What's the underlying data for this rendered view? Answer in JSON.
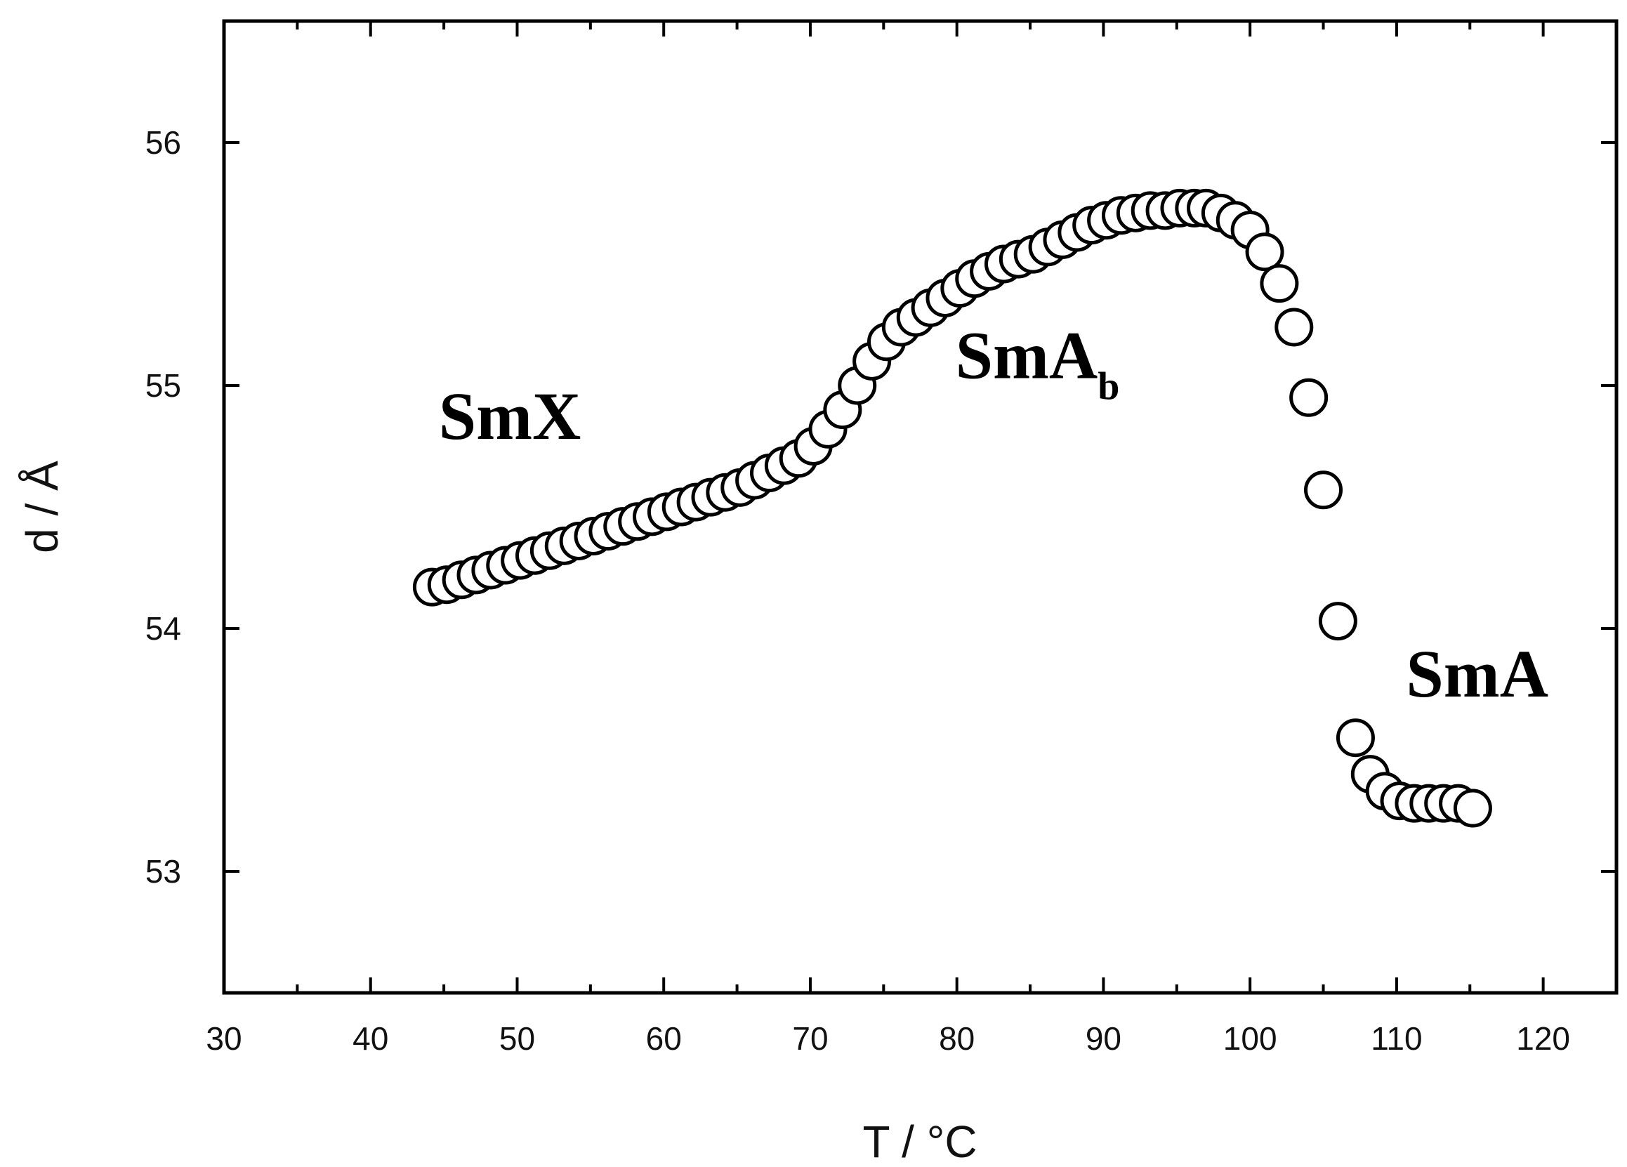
{
  "chart_data": {
    "type": "scatter",
    "xlabel": "T / °C",
    "ylabel": "d / Å",
    "xlim": [
      30,
      125
    ],
    "ylim": [
      52.5,
      56.5
    ],
    "xticks": [
      30,
      40,
      50,
      60,
      70,
      80,
      90,
      100,
      110,
      120
    ],
    "yticks": [
      53,
      54,
      55,
      56
    ],
    "grid": false,
    "marker": "open-circle",
    "series": [
      {
        "x": [
          44.2,
          45.2,
          46.2,
          47.2,
          48.2,
          49.2,
          50.2,
          51.2,
          52.2,
          53.2,
          54.2,
          55.2,
          56.2,
          57.2,
          58.2,
          59.2,
          60.2,
          61.2,
          62.2,
          63.2,
          64.2,
          65.2,
          66.2,
          67.2,
          68.2,
          69.2,
          70.2,
          71.2,
          72.2,
          73.2,
          74.2,
          75.2,
          76.2,
          77.2,
          78.2,
          79.2,
          80.2,
          81.2,
          82.2,
          83.2,
          84.2,
          85.2,
          86.2,
          87.2,
          88.2,
          89.2,
          90.2,
          91.2,
          92.2,
          93.2,
          94.2,
          95.2,
          96.2,
          97.0,
          98.0,
          99.0,
          100.0,
          101.0,
          102.0,
          103.0,
          104.0,
          105.0,
          106.0,
          107.2,
          108.2,
          109.2,
          110.2,
          111.2,
          112.2,
          113.2,
          114.2,
          115.2
        ],
        "y": [
          54.17,
          54.18,
          54.2,
          54.22,
          54.24,
          54.26,
          54.28,
          54.3,
          54.32,
          54.34,
          54.36,
          54.38,
          54.4,
          54.42,
          54.44,
          54.46,
          54.48,
          54.5,
          54.52,
          54.54,
          54.56,
          54.58,
          54.61,
          54.64,
          54.67,
          54.7,
          54.75,
          54.82,
          54.9,
          55.0,
          55.1,
          55.18,
          55.24,
          55.28,
          55.32,
          55.36,
          55.4,
          55.44,
          55.47,
          55.5,
          55.52,
          55.54,
          55.57,
          55.6,
          55.63,
          55.66,
          55.68,
          55.7,
          55.71,
          55.72,
          55.72,
          55.73,
          55.73,
          55.73,
          55.71,
          55.68,
          55.64,
          55.55,
          55.42,
          55.24,
          54.95,
          54.57,
          54.03,
          53.55,
          53.4,
          53.33,
          53.29,
          53.28,
          53.28,
          53.28,
          53.28,
          53.26
        ]
      }
    ],
    "annotations": [
      {
        "text": "SmX",
        "x": 49.5,
        "y": 54.78
      },
      {
        "text": "SmA",
        "subscript": "b",
        "x": 85.5,
        "y": 55.03
      },
      {
        "text": "SmA",
        "x": 115.5,
        "y": 53.72
      }
    ]
  }
}
